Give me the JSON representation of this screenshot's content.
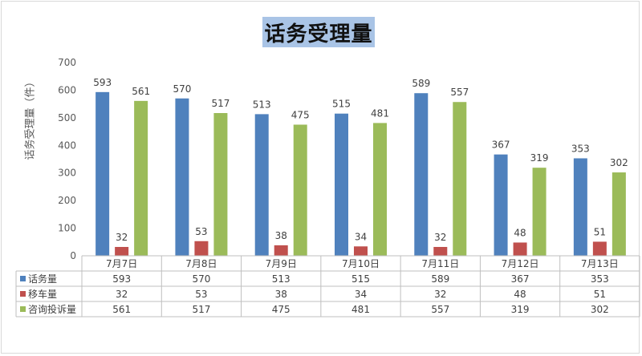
{
  "chart_data": {
    "type": "bar",
    "title": "话务受理量",
    "ylabel": "话务受理量（件）",
    "ylim": [
      0,
      700
    ],
    "yticks": [
      0,
      100,
      200,
      300,
      400,
      500,
      600,
      700
    ],
    "categories": [
      "7月7日",
      "7月8日",
      "7月9日",
      "7月10日",
      "7月11日",
      "7月12日",
      "7月13日"
    ],
    "series": [
      {
        "name": "话务量",
        "color": "#4f81bd",
        "values": [
          593,
          570,
          513,
          515,
          589,
          367,
          353
        ]
      },
      {
        "name": "移车量",
        "color": "#c0504d",
        "values": [
          32,
          53,
          38,
          34,
          32,
          48,
          51
        ]
      },
      {
        "name": "咨询投诉量",
        "color": "#9bbb59",
        "values": [
          561,
          517,
          475,
          481,
          557,
          319,
          302
        ]
      }
    ],
    "grid": false,
    "legend": "data-table"
  }
}
